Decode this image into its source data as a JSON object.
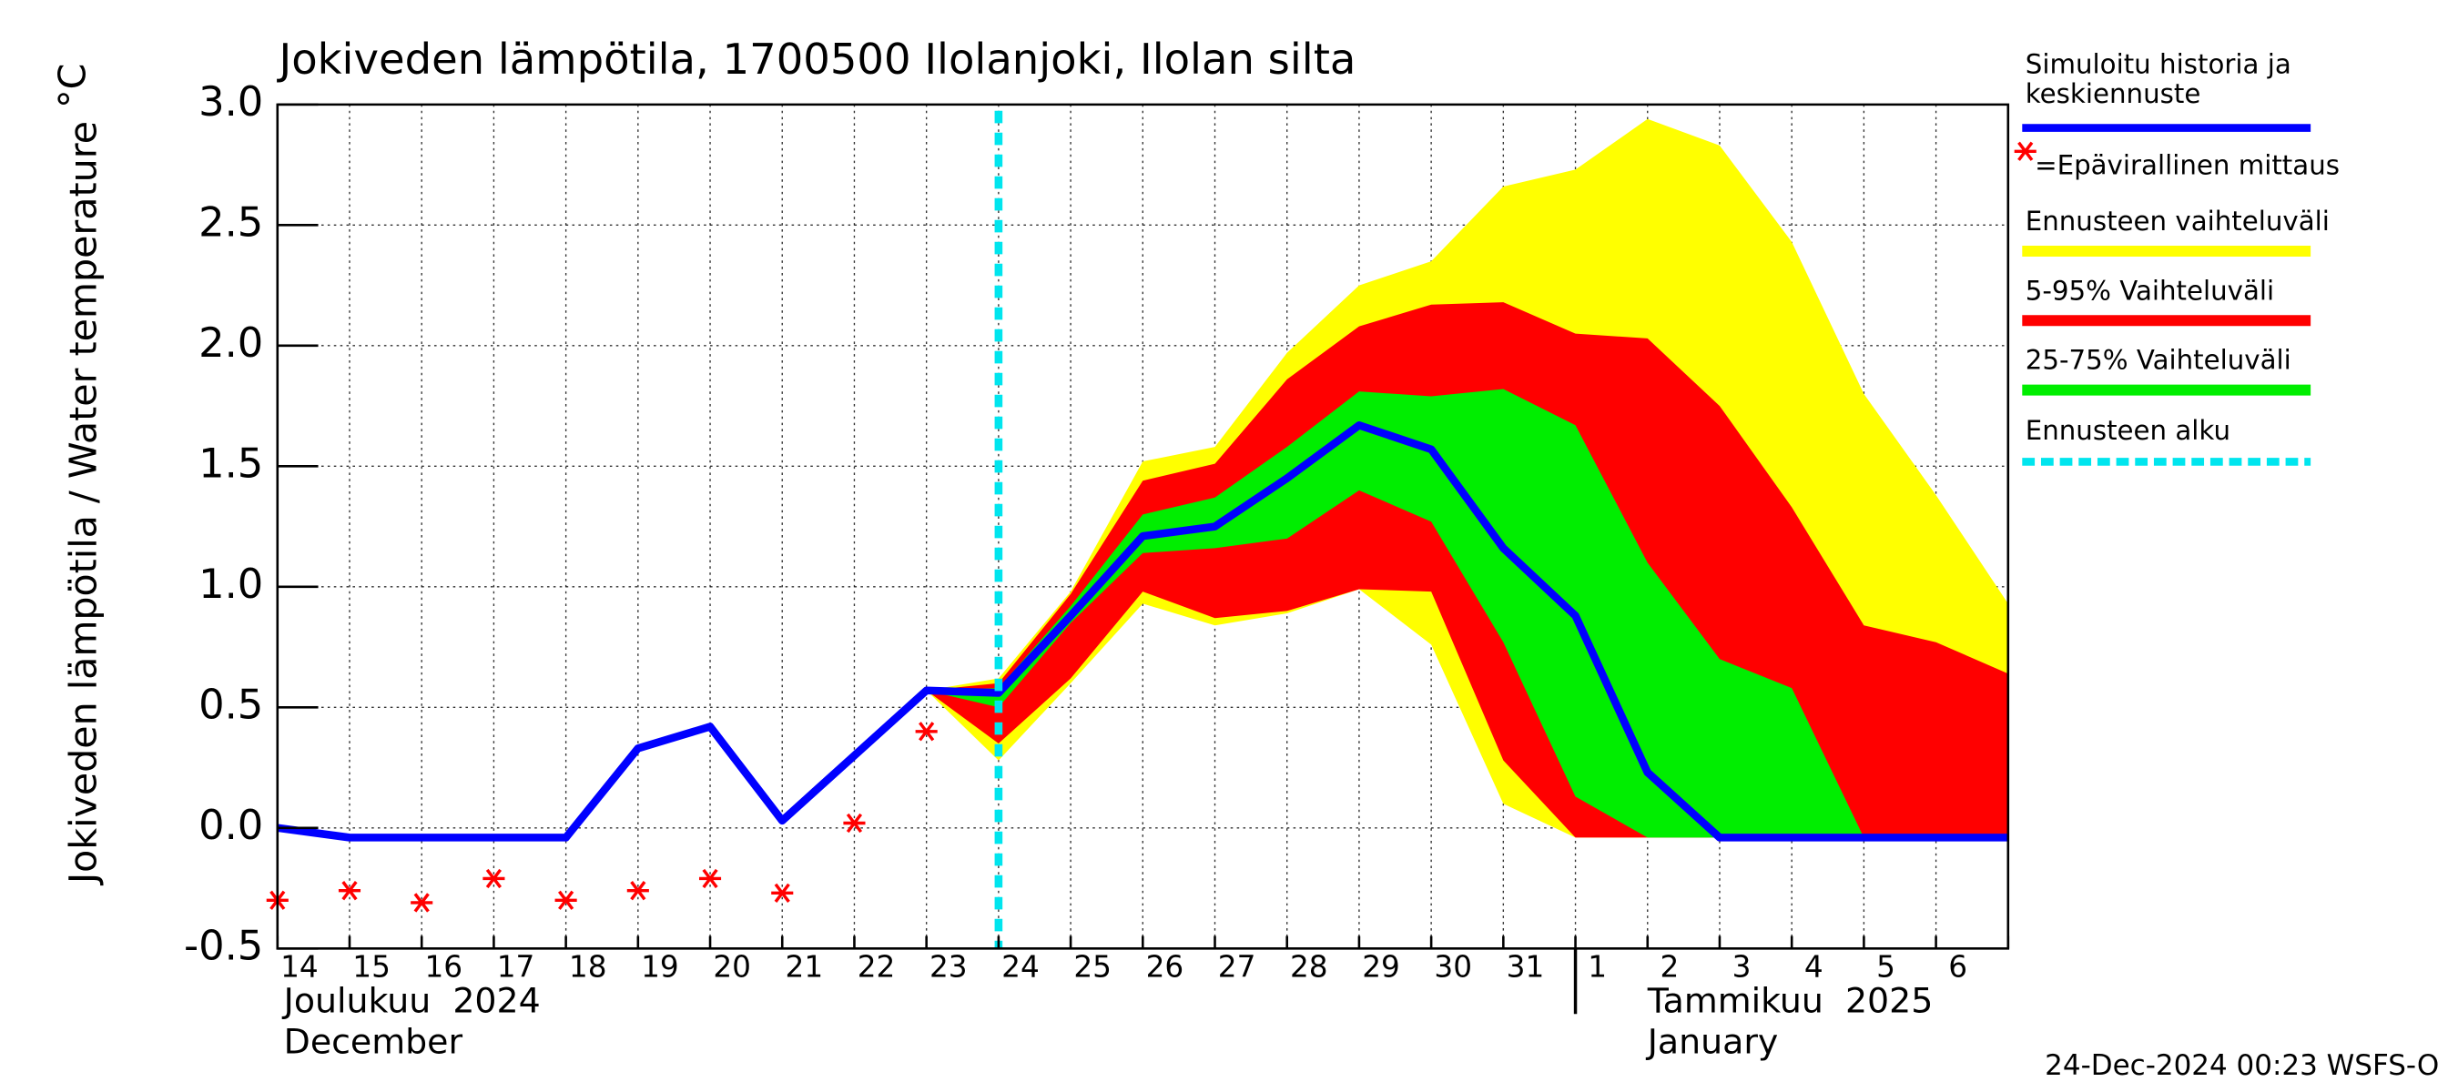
{
  "chart_data": {
    "type": "line",
    "title": "Jokiveden lämpötila, 1700500 Ilolanjoki, Ilolan silta",
    "y_label": "Jokiveden lämpötila / Water temperature",
    "y_unit": "°C",
    "footer": "24-Dec-2024 00:23 WSFS-O",
    "categories": [
      "14",
      "15",
      "16",
      "17",
      "18",
      "19",
      "20",
      "21",
      "22",
      "23",
      "24",
      "25",
      "26",
      "27",
      "28",
      "29",
      "30",
      "31",
      "1",
      "2",
      "3",
      "4",
      "5",
      "6",
      null
    ],
    "month_labels": [
      {
        "fi": "Joulukuu  2024",
        "en": "December",
        "start": "14"
      },
      {
        "fi": "Tammikuu  2025",
        "en": "January",
        "start": "1"
      }
    ],
    "ylim": [
      -0.5,
      3.0
    ],
    "yticks": [
      {
        "value": 3.0,
        "label": "3.0"
      },
      2.5,
      {
        "value": 2.0,
        "label": "2.0"
      },
      1.5,
      {
        "value": 1.0,
        "label": "1.0"
      },
      0.5,
      {
        "value": 0.0,
        "label": "0.0"
      },
      -0.5
    ],
    "grid": true,
    "bands": [
      {
        "name": "Ennusteen vaihteluväli",
        "color": "#ffff00",
        "upper": [
          null,
          null,
          null,
          null,
          null,
          null,
          null,
          null,
          null,
          0.57,
          0.62,
          0.98,
          1.52,
          1.58,
          1.97,
          2.25,
          2.35,
          2.66,
          2.73,
          2.94,
          2.83,
          2.43,
          1.8,
          1.38,
          0.93
        ],
        "lower": [
          null,
          null,
          null,
          null,
          null,
          null,
          null,
          null,
          null,
          0.57,
          0.28,
          0.6,
          0.93,
          0.84,
          0.89,
          0.99,
          0.76,
          0.1,
          -0.04,
          -0.04,
          -0.04,
          -0.04,
          -0.04,
          -0.04,
          -0.04
        ]
      },
      {
        "name": "5-95% Vaihteluväli",
        "color": "#ff0000",
        "upper": [
          null,
          null,
          null,
          null,
          null,
          null,
          null,
          null,
          null,
          0.57,
          0.6,
          0.97,
          1.44,
          1.51,
          1.86,
          2.08,
          2.17,
          2.18,
          2.05,
          2.03,
          1.75,
          1.33,
          0.84,
          0.77,
          0.64
        ],
        "lower": [
          null,
          null,
          null,
          null,
          null,
          null,
          null,
          null,
          null,
          0.57,
          0.35,
          0.62,
          0.98,
          0.87,
          0.9,
          0.99,
          0.98,
          0.28,
          -0.04,
          -0.04,
          -0.04,
          -0.04,
          -0.04,
          -0.04,
          -0.04
        ]
      },
      {
        "name": "25-75% Vaihteluväli",
        "color": "#00ee00",
        "upper": [
          null,
          null,
          null,
          null,
          null,
          null,
          null,
          null,
          null,
          0.57,
          0.58,
          0.92,
          1.3,
          1.37,
          1.58,
          1.81,
          1.79,
          1.82,
          1.67,
          1.1,
          0.7,
          0.58,
          -0.04,
          -0.04,
          -0.04
        ],
        "lower": [
          null,
          null,
          null,
          null,
          null,
          null,
          null,
          null,
          null,
          0.57,
          0.5,
          0.85,
          1.14,
          1.16,
          1.2,
          1.4,
          1.27,
          0.77,
          0.13,
          -0.04,
          -0.04,
          -0.04,
          -0.04,
          -0.04,
          -0.04
        ]
      }
    ],
    "series": [
      {
        "name": "Simuloitu historia ja keskiennuste",
        "color": "#0000ff",
        "values": [
          0.0,
          -0.04,
          -0.04,
          -0.04,
          -0.04,
          0.33,
          0.42,
          0.03,
          0.3,
          0.57,
          0.56,
          0.88,
          1.21,
          1.25,
          1.45,
          1.67,
          1.57,
          1.16,
          0.88,
          0.23,
          -0.04,
          -0.04,
          -0.04,
          -0.04,
          -0.04
        ]
      },
      {
        "name": "=Epävirallinen mittaus",
        "color": "#ff0000",
        "marker": "asterisk",
        "values": [
          -0.3,
          -0.26,
          -0.31,
          -0.21,
          -0.3,
          -0.26,
          -0.21,
          -0.27,
          0.02,
          0.4,
          null,
          null,
          null,
          null,
          null,
          null,
          null,
          null,
          null,
          null,
          null,
          null,
          null,
          null,
          null
        ]
      }
    ],
    "forecast_start": {
      "name": "Ennusteen alku",
      "color": "#00e5ee",
      "at": "24"
    }
  }
}
